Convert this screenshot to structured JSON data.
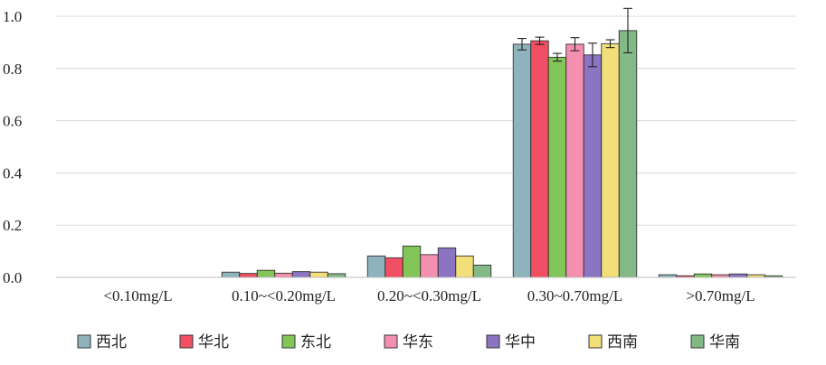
{
  "chart_data": {
    "type": "bar",
    "title": "",
    "xlabel": "",
    "ylabel": "",
    "ylim": [
      0,
      1.0
    ],
    "yticks": [
      "0.0",
      "0.2",
      "0.4",
      "0.6",
      "0.8",
      "1.0"
    ],
    "grid": "horizontal",
    "legend_position": "bottom",
    "categories": [
      "<0.10mg/L",
      "0.10~<0.20mg/L",
      "0.20~<0.30mg/L",
      "0.30~0.70mg/L",
      ">0.70mg/L"
    ],
    "series": [
      {
        "name": "西北",
        "color": "#8fb3bd",
        "values": [
          0,
          0.02,
          0.082,
          0.893,
          0.01
        ],
        "errors": [
          0,
          0,
          0,
          0.022,
          0
        ]
      },
      {
        "name": "华北",
        "color": "#f04f64",
        "values": [
          0,
          0.015,
          0.075,
          0.906,
          0.006
        ],
        "errors": [
          0,
          0,
          0,
          0.014,
          0
        ]
      },
      {
        "name": "东北",
        "color": "#84c55a",
        "values": [
          0,
          0.027,
          0.12,
          0.843,
          0.013
        ],
        "errors": [
          0,
          0,
          0,
          0.015,
          0
        ]
      },
      {
        "name": "华东",
        "color": "#f48fb0",
        "values": [
          0,
          0.016,
          0.087,
          0.893,
          0.01
        ],
        "errors": [
          0,
          0,
          0,
          0.025,
          0
        ]
      },
      {
        "name": "华中",
        "color": "#8b74c1",
        "values": [
          0,
          0.022,
          0.113,
          0.852,
          0.013
        ],
        "errors": [
          0,
          0,
          0,
          0.045,
          0
        ]
      },
      {
        "name": "西南",
        "color": "#f3df7a",
        "values": [
          0,
          0.02,
          0.082,
          0.895,
          0.01
        ],
        "errors": [
          0,
          0,
          0,
          0.015,
          0
        ]
      },
      {
        "name": "华南",
        "color": "#83b986",
        "values": [
          0,
          0.014,
          0.047,
          0.945,
          0.006
        ],
        "errors": [
          0,
          0,
          0,
          0.085,
          0
        ]
      }
    ]
  }
}
